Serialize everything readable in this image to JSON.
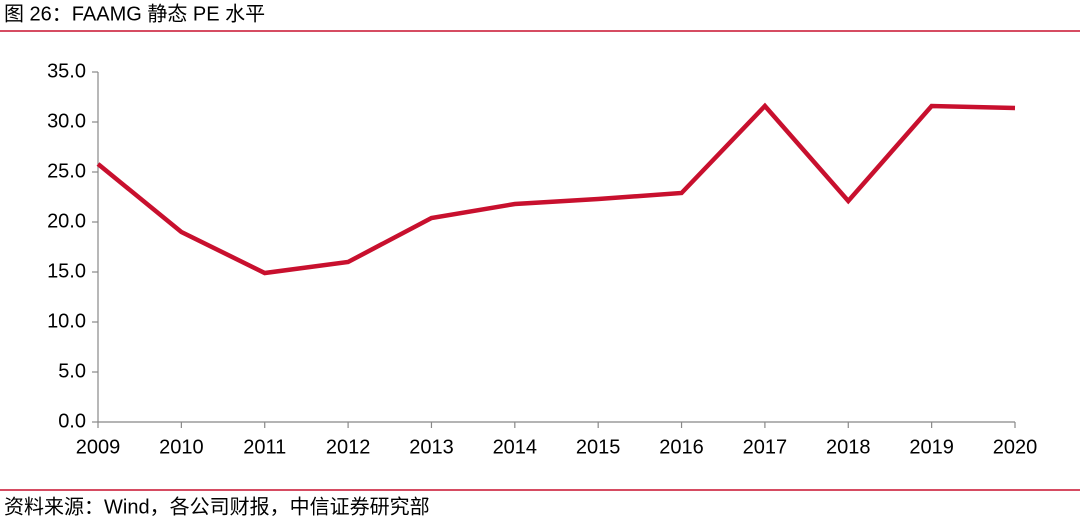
{
  "chart_data": {
    "type": "line",
    "title": "图 26：FAAMG 静态 PE 水平",
    "source": "资料来源：Wind，各公司财报，中信证券研究部",
    "categories": [
      "2009",
      "2010",
      "2011",
      "2012",
      "2013",
      "2014",
      "2015",
      "2016",
      "2017",
      "2018",
      "2019",
      "2020"
    ],
    "values": [
      25.8,
      19.0,
      14.9,
      16.0,
      20.4,
      21.8,
      22.3,
      22.9,
      31.6,
      22.1,
      31.6,
      31.4
    ],
    "color": "#c8102e",
    "ylim": [
      0,
      35
    ],
    "yticks": [
      {
        "value": 0,
        "label": "0.0"
      },
      {
        "value": 5,
        "label": "5.0"
      },
      {
        "value": 10,
        "label": "10.0"
      },
      {
        "value": 15,
        "label": "15.0"
      },
      {
        "value": 20,
        "label": "20.0"
      },
      {
        "value": 25,
        "label": "25.0"
      },
      {
        "value": 30,
        "label": "30.0"
      },
      {
        "value": 35,
        "label": "35.0"
      }
    ],
    "grid": false
  }
}
